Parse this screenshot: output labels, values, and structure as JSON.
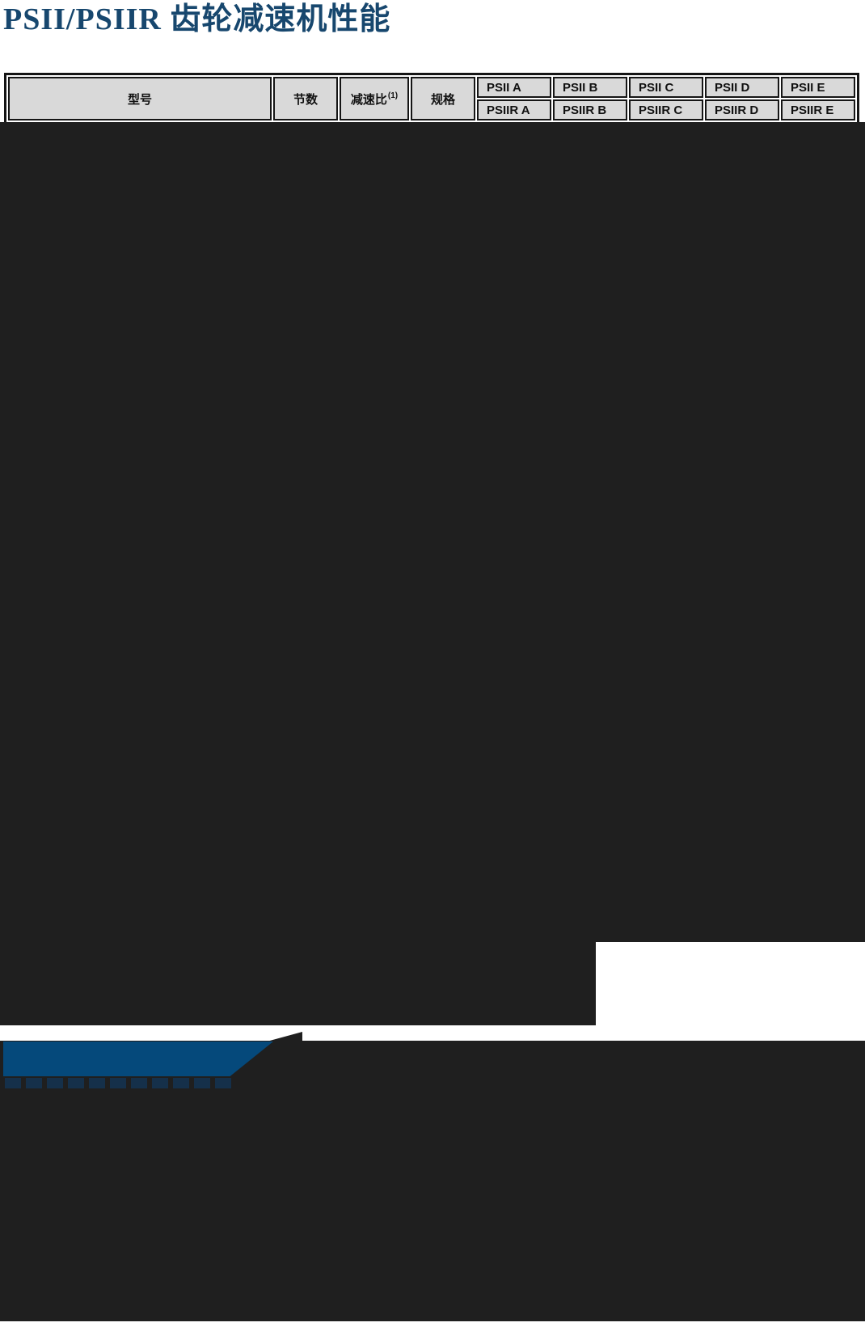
{
  "page": {
    "title": "PSII/PSIIR 齿轮减速机性能"
  },
  "table": {
    "headers": {
      "model": "型号",
      "sections": "节数",
      "ratio": "减速比",
      "ratio_note": "(1)",
      "spec": "规格"
    },
    "series_top": [
      "PSII A",
      "PSII B",
      "PSII C",
      "PSII D",
      "PSII E"
    ],
    "series_bottom": [
      "PSIIR A",
      "PSIIR B",
      "PSIIR C",
      "PSIIR D",
      "PSIIR E"
    ]
  },
  "colors": {
    "title_text": "#17476E",
    "banner_blue": "#05497B",
    "dark_region": "#1F1F1F",
    "header_cell_bg": "#D9D9D9",
    "header_border": "#151515"
  }
}
